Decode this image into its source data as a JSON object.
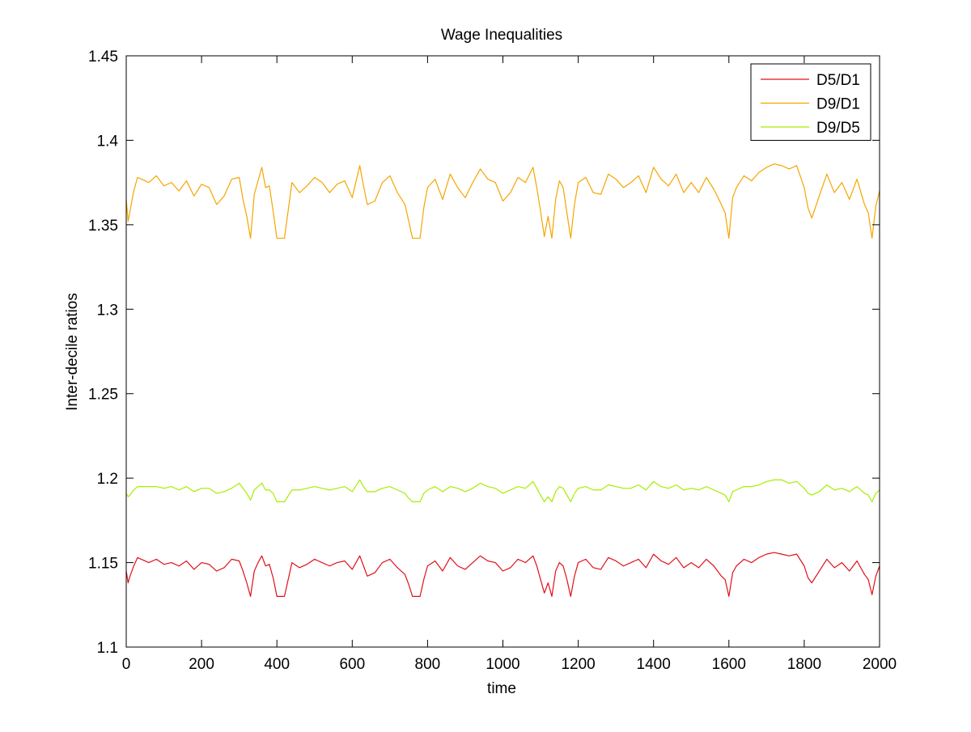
{
  "chart_data": {
    "type": "line",
    "title": "Wage Inequalities",
    "xlabel": "time",
    "ylabel": "Inter-decile ratios",
    "xlim": [
      0,
      2000
    ],
    "ylim": [
      1.1,
      1.45
    ],
    "xticks": [
      0,
      200,
      400,
      600,
      800,
      1000,
      1200,
      1400,
      1600,
      1800,
      2000
    ],
    "xtick_labels": [
      "0",
      "200",
      "400",
      "600",
      "800",
      "1000",
      "1200",
      "1400",
      "1600",
      "1800",
      "2000"
    ],
    "yticks": [
      1.1,
      1.15,
      1.2,
      1.25,
      1.3,
      1.35,
      1.4,
      1.45
    ],
    "ytick_labels": [
      "1.1",
      "1.15",
      "1.2",
      "1.25",
      "1.3",
      "1.35",
      "1.4",
      "1.45"
    ],
    "grid": false,
    "legend_position": "top-right",
    "series": [
      {
        "name": "D5/D1",
        "color": "#e0101a",
        "x": [
          0,
          5,
          10,
          20,
          30,
          40,
          60,
          80,
          100,
          120,
          140,
          160,
          180,
          200,
          220,
          240,
          260,
          280,
          300,
          310,
          320,
          330,
          340,
          350,
          360,
          370,
          380,
          390,
          400,
          410,
          420,
          440,
          460,
          480,
          500,
          520,
          540,
          560,
          580,
          600,
          620,
          630,
          640,
          660,
          680,
          700,
          720,
          740,
          750,
          760,
          770,
          780,
          790,
          800,
          820,
          840,
          860,
          880,
          900,
          920,
          940,
          960,
          980,
          1000,
          1020,
          1040,
          1060,
          1080,
          1090,
          1100,
          1110,
          1120,
          1130,
          1140,
          1150,
          1160,
          1170,
          1180,
          1190,
          1200,
          1220,
          1240,
          1260,
          1280,
          1300,
          1320,
          1340,
          1360,
          1380,
          1400,
          1420,
          1440,
          1460,
          1480,
          1500,
          1520,
          1540,
          1560,
          1580,
          1590,
          1600,
          1610,
          1620,
          1640,
          1660,
          1680,
          1700,
          1720,
          1740,
          1760,
          1780,
          1800,
          1810,
          1820,
          1840,
          1860,
          1880,
          1900,
          1920,
          1940,
          1960,
          1970,
          1980,
          1990,
          2000
        ],
        "values": [
          1.145,
          1.138,
          1.142,
          1.148,
          1.153,
          1.152,
          1.15,
          1.152,
          1.149,
          1.15,
          1.148,
          1.151,
          1.146,
          1.15,
          1.149,
          1.145,
          1.147,
          1.152,
          1.151,
          1.145,
          1.138,
          1.13,
          1.145,
          1.15,
          1.154,
          1.148,
          1.149,
          1.141,
          1.13,
          1.13,
          1.13,
          1.15,
          1.147,
          1.149,
          1.152,
          1.15,
          1.148,
          1.15,
          1.151,
          1.146,
          1.154,
          1.148,
          1.142,
          1.144,
          1.15,
          1.152,
          1.147,
          1.143,
          1.137,
          1.13,
          1.13,
          1.13,
          1.14,
          1.148,
          1.151,
          1.145,
          1.153,
          1.148,
          1.146,
          1.15,
          1.154,
          1.151,
          1.15,
          1.145,
          1.147,
          1.152,
          1.15,
          1.154,
          1.148,
          1.14,
          1.132,
          1.138,
          1.13,
          1.145,
          1.15,
          1.148,
          1.14,
          1.13,
          1.142,
          1.15,
          1.152,
          1.147,
          1.146,
          1.153,
          1.151,
          1.148,
          1.15,
          1.152,
          1.147,
          1.155,
          1.151,
          1.149,
          1.153,
          1.147,
          1.15,
          1.147,
          1.152,
          1.148,
          1.142,
          1.14,
          1.13,
          1.144,
          1.148,
          1.152,
          1.15,
          1.153,
          1.155,
          1.156,
          1.155,
          1.154,
          1.155,
          1.148,
          1.141,
          1.138,
          1.145,
          1.152,
          1.147,
          1.15,
          1.145,
          1.151,
          1.143,
          1.14,
          1.131,
          1.142,
          1.148
        ]
      },
      {
        "name": "D9/D1",
        "color": "#f5a500",
        "x": [
          0,
          5,
          10,
          20,
          30,
          40,
          60,
          80,
          100,
          120,
          140,
          160,
          180,
          200,
          220,
          240,
          260,
          280,
          300,
          310,
          320,
          330,
          340,
          350,
          360,
          370,
          380,
          390,
          400,
          410,
          420,
          440,
          460,
          480,
          500,
          520,
          540,
          560,
          580,
          600,
          620,
          630,
          640,
          660,
          680,
          700,
          720,
          740,
          750,
          760,
          770,
          780,
          790,
          800,
          820,
          840,
          860,
          880,
          900,
          920,
          940,
          960,
          980,
          1000,
          1020,
          1040,
          1060,
          1080,
          1090,
          1100,
          1110,
          1120,
          1130,
          1140,
          1150,
          1160,
          1170,
          1180,
          1190,
          1200,
          1220,
          1240,
          1260,
          1280,
          1300,
          1320,
          1340,
          1360,
          1380,
          1400,
          1420,
          1440,
          1460,
          1480,
          1500,
          1520,
          1540,
          1560,
          1580,
          1590,
          1600,
          1610,
          1620,
          1640,
          1660,
          1680,
          1700,
          1720,
          1740,
          1760,
          1780,
          1800,
          1810,
          1820,
          1840,
          1860,
          1880,
          1900,
          1920,
          1940,
          1960,
          1970,
          1980,
          1990,
          2000
        ],
        "values": [
          1.365,
          1.352,
          1.358,
          1.37,
          1.378,
          1.377,
          1.375,
          1.379,
          1.373,
          1.375,
          1.37,
          1.376,
          1.367,
          1.374,
          1.372,
          1.362,
          1.367,
          1.377,
          1.378,
          1.365,
          1.355,
          1.342,
          1.368,
          1.376,
          1.384,
          1.372,
          1.373,
          1.358,
          1.342,
          1.342,
          1.342,
          1.375,
          1.369,
          1.373,
          1.378,
          1.375,
          1.369,
          1.374,
          1.376,
          1.366,
          1.385,
          1.373,
          1.362,
          1.364,
          1.375,
          1.379,
          1.369,
          1.362,
          1.352,
          1.342,
          1.342,
          1.342,
          1.36,
          1.372,
          1.377,
          1.365,
          1.38,
          1.372,
          1.366,
          1.375,
          1.383,
          1.377,
          1.375,
          1.364,
          1.369,
          1.378,
          1.375,
          1.384,
          1.372,
          1.358,
          1.343,
          1.355,
          1.342,
          1.365,
          1.376,
          1.372,
          1.357,
          1.342,
          1.362,
          1.375,
          1.378,
          1.369,
          1.368,
          1.38,
          1.377,
          1.372,
          1.375,
          1.379,
          1.369,
          1.384,
          1.377,
          1.373,
          1.38,
          1.369,
          1.375,
          1.369,
          1.378,
          1.371,
          1.362,
          1.357,
          1.342,
          1.366,
          1.372,
          1.379,
          1.376,
          1.381,
          1.384,
          1.386,
          1.385,
          1.383,
          1.385,
          1.372,
          1.36,
          1.354,
          1.367,
          1.38,
          1.369,
          1.375,
          1.365,
          1.377,
          1.362,
          1.357,
          1.342,
          1.361,
          1.37
        ]
      },
      {
        "name": "D9/D5",
        "color": "#a6ee00",
        "x": [
          0,
          5,
          10,
          20,
          30,
          40,
          60,
          80,
          100,
          120,
          140,
          160,
          180,
          200,
          220,
          240,
          260,
          280,
          300,
          310,
          320,
          330,
          340,
          350,
          360,
          370,
          380,
          390,
          400,
          410,
          420,
          440,
          460,
          480,
          500,
          520,
          540,
          560,
          580,
          600,
          620,
          630,
          640,
          660,
          680,
          700,
          720,
          740,
          750,
          760,
          770,
          780,
          790,
          800,
          820,
          840,
          860,
          880,
          900,
          920,
          940,
          960,
          980,
          1000,
          1020,
          1040,
          1060,
          1080,
          1090,
          1100,
          1110,
          1120,
          1130,
          1140,
          1150,
          1160,
          1170,
          1180,
          1190,
          1200,
          1220,
          1240,
          1260,
          1280,
          1300,
          1320,
          1340,
          1360,
          1380,
          1400,
          1420,
          1440,
          1460,
          1480,
          1500,
          1520,
          1540,
          1560,
          1580,
          1590,
          1600,
          1610,
          1620,
          1640,
          1660,
          1680,
          1700,
          1720,
          1740,
          1760,
          1780,
          1800,
          1810,
          1820,
          1840,
          1860,
          1880,
          1900,
          1920,
          1940,
          1960,
          1970,
          1980,
          1990,
          2000
        ],
        "values": [
          1.191,
          1.189,
          1.19,
          1.193,
          1.195,
          1.195,
          1.195,
          1.195,
          1.194,
          1.195,
          1.193,
          1.195,
          1.192,
          1.194,
          1.194,
          1.191,
          1.192,
          1.194,
          1.197,
          1.194,
          1.191,
          1.187,
          1.193,
          1.195,
          1.197,
          1.193,
          1.193,
          1.191,
          1.186,
          1.186,
          1.186,
          1.193,
          1.193,
          1.194,
          1.195,
          1.194,
          1.193,
          1.194,
          1.195,
          1.192,
          1.199,
          1.195,
          1.192,
          1.192,
          1.194,
          1.195,
          1.193,
          1.191,
          1.188,
          1.186,
          1.186,
          1.186,
          1.191,
          1.193,
          1.195,
          1.192,
          1.195,
          1.194,
          1.192,
          1.194,
          1.197,
          1.195,
          1.194,
          1.191,
          1.193,
          1.195,
          1.194,
          1.198,
          1.194,
          1.19,
          1.186,
          1.189,
          1.186,
          1.192,
          1.195,
          1.194,
          1.19,
          1.186,
          1.191,
          1.194,
          1.195,
          1.193,
          1.193,
          1.196,
          1.195,
          1.194,
          1.194,
          1.196,
          1.193,
          1.198,
          1.195,
          1.194,
          1.196,
          1.193,
          1.194,
          1.193,
          1.195,
          1.193,
          1.191,
          1.19,
          1.186,
          1.192,
          1.193,
          1.195,
          1.195,
          1.196,
          1.198,
          1.199,
          1.199,
          1.197,
          1.198,
          1.194,
          1.191,
          1.19,
          1.192,
          1.196,
          1.193,
          1.194,
          1.192,
          1.195,
          1.191,
          1.19,
          1.186,
          1.191,
          1.193
        ]
      }
    ]
  }
}
